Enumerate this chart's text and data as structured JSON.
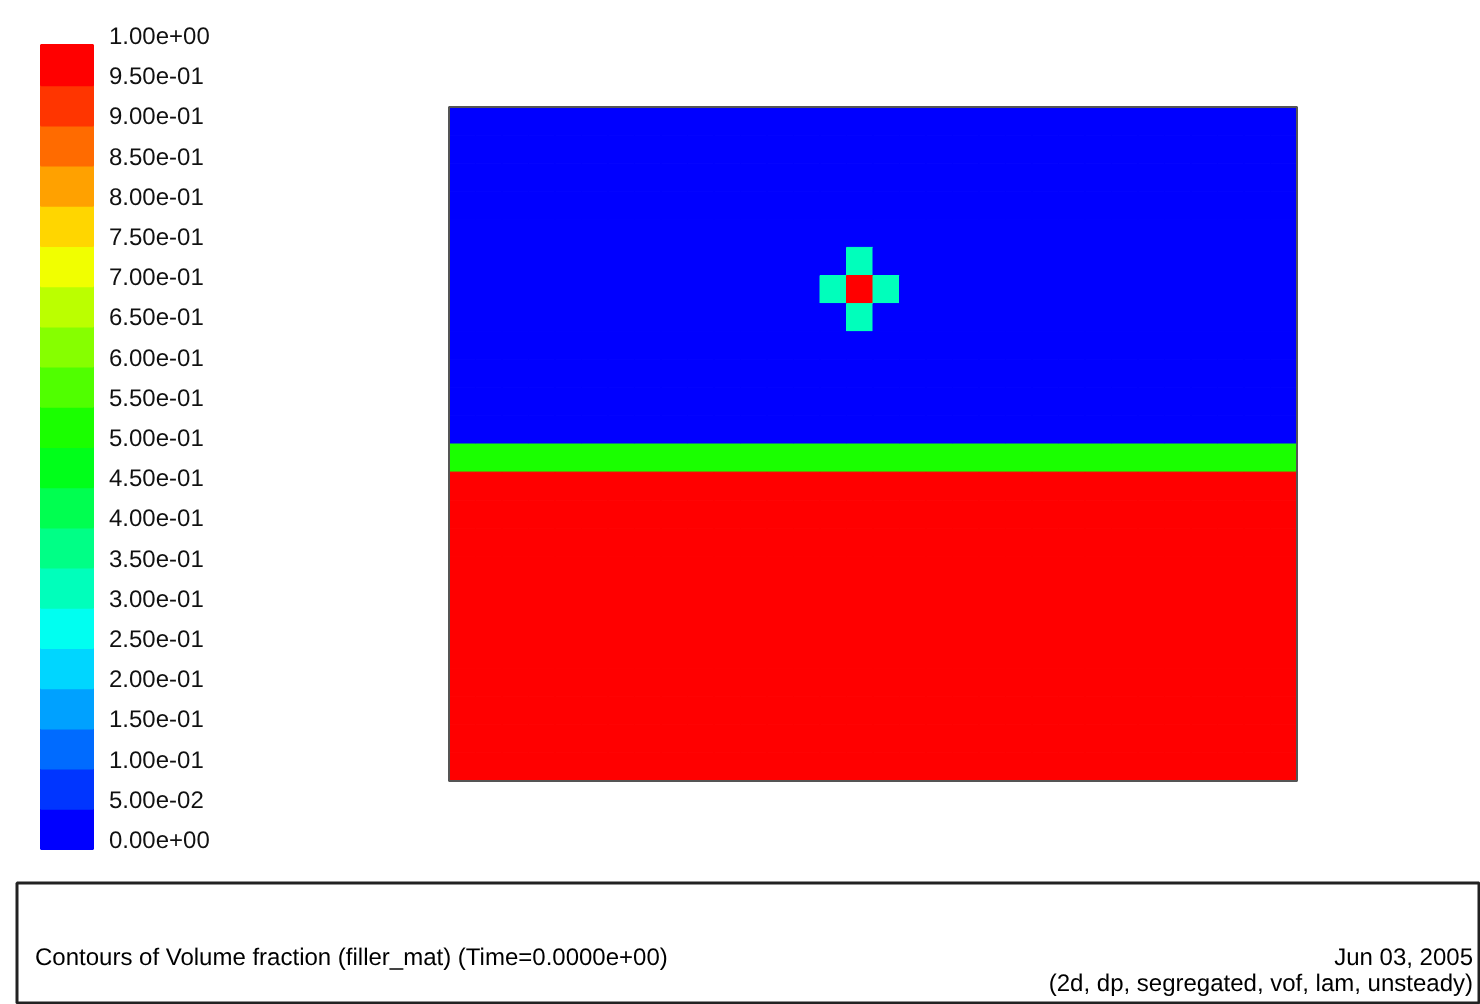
{
  "chart_data": {
    "type": "heatmap",
    "title": "Contours of Volume fraction (filler_mat)   (Time=0.0000e+00)",
    "annotations": [
      "Jun 03, 2005",
      "(2d, dp, segregated, vof, lam, unsteady)"
    ],
    "categories": [
      null,
      null,
      null,
      null,
      null,
      null,
      null,
      null,
      null,
      null,
      null,
      null,
      null,
      null,
      null,
      null,
      null,
      null,
      null,
      null,
      null,
      null,
      null,
      null,
      null,
      null,
      null,
      null,
      null,
      null,
      null,
      null
    ],
    "y_categories": [
      null,
      null,
      null,
      null,
      null,
      null,
      null,
      null,
      null,
      null,
      null,
      null,
      null,
      null,
      null,
      null,
      null,
      null,
      null,
      null,
      null,
      null,
      null,
      null
    ],
    "cells": [
      [
        0,
        0,
        0,
        0,
        0,
        0,
        0,
        0,
        0,
        0,
        0,
        0,
        0,
        0,
        0,
        0,
        0,
        0,
        0,
        0,
        0,
        0,
        0,
        0,
        0,
        0,
        0,
        0,
        0,
        0,
        0,
        0
      ],
      [
        0,
        0,
        0,
        0,
        0,
        0,
        0,
        0,
        0,
        0,
        0,
        0,
        0,
        0,
        0,
        0,
        0,
        0,
        0,
        0,
        0,
        0,
        0,
        0,
        0,
        0,
        0,
        0,
        0,
        0,
        0,
        0
      ],
      [
        0,
        0,
        0,
        0,
        0,
        0,
        0,
        0,
        0,
        0,
        0,
        0,
        0,
        0,
        0,
        0,
        0,
        0,
        0,
        0,
        0,
        0,
        0,
        0,
        0,
        0,
        0,
        0,
        0,
        0,
        0,
        0
      ],
      [
        0,
        0,
        0,
        0,
        0,
        0,
        0,
        0,
        0,
        0,
        0,
        0,
        0,
        0,
        0,
        0,
        0,
        0,
        0,
        0,
        0,
        0,
        0,
        0,
        0,
        0,
        0,
        0,
        0,
        0,
        0,
        0
      ],
      [
        0,
        0,
        0,
        0,
        0,
        0,
        0,
        0,
        0,
        0,
        0,
        0,
        0,
        0,
        0,
        0,
        0,
        0,
        0,
        0,
        0,
        0,
        0,
        0,
        0,
        0,
        0,
        0,
        0,
        0,
        0,
        0
      ],
      [
        0,
        0,
        0,
        0,
        0,
        0,
        0,
        0,
        0,
        0,
        0,
        0,
        0,
        0,
        0,
        0.3,
        0,
        0,
        0,
        0,
        0,
        0,
        0,
        0,
        0,
        0,
        0,
        0,
        0,
        0,
        0,
        0
      ],
      [
        0,
        0,
        0,
        0,
        0,
        0,
        0,
        0,
        0,
        0,
        0,
        0,
        0,
        0,
        0.3,
        1,
        0.3,
        0,
        0,
        0,
        0,
        0,
        0,
        0,
        0,
        0,
        0,
        0,
        0,
        0,
        0,
        0
      ],
      [
        0,
        0,
        0,
        0,
        0,
        0,
        0,
        0,
        0,
        0,
        0,
        0,
        0,
        0,
        0,
        0.3,
        0,
        0,
        0,
        0,
        0,
        0,
        0,
        0,
        0,
        0,
        0,
        0,
        0,
        0,
        0,
        0
      ],
      [
        0,
        0,
        0,
        0,
        0,
        0,
        0,
        0,
        0,
        0,
        0,
        0,
        0,
        0,
        0,
        0,
        0,
        0,
        0,
        0,
        0,
        0,
        0,
        0,
        0,
        0,
        0,
        0,
        0,
        0,
        0,
        0
      ],
      [
        0,
        0,
        0,
        0,
        0,
        0,
        0,
        0,
        0,
        0,
        0,
        0,
        0,
        0,
        0,
        0,
        0,
        0,
        0,
        0,
        0,
        0,
        0,
        0,
        0,
        0,
        0,
        0,
        0,
        0,
        0,
        0
      ],
      [
        0,
        0,
        0,
        0,
        0,
        0,
        0,
        0,
        0,
        0,
        0,
        0,
        0,
        0,
        0,
        0,
        0,
        0,
        0,
        0,
        0,
        0,
        0,
        0,
        0,
        0,
        0,
        0,
        0,
        0,
        0,
        0
      ],
      [
        0,
        0,
        0,
        0,
        0,
        0,
        0,
        0,
        0,
        0,
        0,
        0,
        0,
        0,
        0,
        0,
        0,
        0,
        0,
        0,
        0,
        0,
        0,
        0,
        0,
        0,
        0,
        0,
        0,
        0,
        0,
        0
      ],
      [
        0.5,
        0.5,
        0.5,
        0.5,
        0.5,
        0.5,
        0.5,
        0.5,
        0.5,
        0.5,
        0.5,
        0.5,
        0.5,
        0.5,
        0.5,
        0.5,
        0.5,
        0.5,
        0.5,
        0.5,
        0.5,
        0.5,
        0.5,
        0.5,
        0.5,
        0.5,
        0.5,
        0.5,
        0.5,
        0.5,
        0.5,
        0.5
      ],
      [
        1,
        1,
        1,
        1,
        1,
        1,
        1,
        1,
        1,
        1,
        1,
        1,
        1,
        1,
        1,
        1,
        1,
        1,
        1,
        1,
        1,
        1,
        1,
        1,
        1,
        1,
        1,
        1,
        1,
        1,
        1,
        1
      ],
      [
        1,
        1,
        1,
        1,
        1,
        1,
        1,
        1,
        1,
        1,
        1,
        1,
        1,
        1,
        1,
        1,
        1,
        1,
        1,
        1,
        1,
        1,
        1,
        1,
        1,
        1,
        1,
        1,
        1,
        1,
        1,
        1
      ],
      [
        1,
        1,
        1,
        1,
        1,
        1,
        1,
        1,
        1,
        1,
        1,
        1,
        1,
        1,
        1,
        1,
        1,
        1,
        1,
        1,
        1,
        1,
        1,
        1,
        1,
        1,
        1,
        1,
        1,
        1,
        1,
        1
      ],
      [
        1,
        1,
        1,
        1,
        1,
        1,
        1,
        1,
        1,
        1,
        1,
        1,
        1,
        1,
        1,
        1,
        1,
        1,
        1,
        1,
        1,
        1,
        1,
        1,
        1,
        1,
        1,
        1,
        1,
        1,
        1,
        1
      ],
      [
        1,
        1,
        1,
        1,
        1,
        1,
        1,
        1,
        1,
        1,
        1,
        1,
        1,
        1,
        1,
        1,
        1,
        1,
        1,
        1,
        1,
        1,
        1,
        1,
        1,
        1,
        1,
        1,
        1,
        1,
        1,
        1
      ],
      [
        1,
        1,
        1,
        1,
        1,
        1,
        1,
        1,
        1,
        1,
        1,
        1,
        1,
        1,
        1,
        1,
        1,
        1,
        1,
        1,
        1,
        1,
        1,
        1,
        1,
        1,
        1,
        1,
        1,
        1,
        1,
        1
      ],
      [
        1,
        1,
        1,
        1,
        1,
        1,
        1,
        1,
        1,
        1,
        1,
        1,
        1,
        1,
        1,
        1,
        1,
        1,
        1,
        1,
        1,
        1,
        1,
        1,
        1,
        1,
        1,
        1,
        1,
        1,
        1,
        1
      ],
      [
        1,
        1,
        1,
        1,
        1,
        1,
        1,
        1,
        1,
        1,
        1,
        1,
        1,
        1,
        1,
        1,
        1,
        1,
        1,
        1,
        1,
        1,
        1,
        1,
        1,
        1,
        1,
        1,
        1,
        1,
        1,
        1
      ],
      [
        1,
        1,
        1,
        1,
        1,
        1,
        1,
        1,
        1,
        1,
        1,
        1,
        1,
        1,
        1,
        1,
        1,
        1,
        1,
        1,
        1,
        1,
        1,
        1,
        1,
        1,
        1,
        1,
        1,
        1,
        1,
        1
      ],
      [
        1,
        1,
        1,
        1,
        1,
        1,
        1,
        1,
        1,
        1,
        1,
        1,
        1,
        1,
        1,
        1,
        1,
        1,
        1,
        1,
        1,
        1,
        1,
        1,
        1,
        1,
        1,
        1,
        1,
        1,
        1,
        1
      ],
      [
        1,
        1,
        1,
        1,
        1,
        1,
        1,
        1,
        1,
        1,
        1,
        1,
        1,
        1,
        1,
        1,
        1,
        1,
        1,
        1,
        1,
        1,
        1,
        1,
        1,
        1,
        1,
        1,
        1,
        1,
        1,
        1
      ]
    ],
    "clim": [
      0,
      1
    ],
    "cticks": [
      {
        "value": 0,
        "label": "0.00e+00"
      },
      {
        "value": 0.05,
        "label": "5.00e-02"
      },
      {
        "value": 0.1,
        "label": "1.00e-01"
      },
      {
        "value": 0.15,
        "label": "1.50e-01"
      },
      {
        "value": 0.2,
        "label": "2.00e-01"
      },
      {
        "value": 0.25,
        "label": "2.50e-01"
      },
      {
        "value": 0.3,
        "label": "3.00e-01"
      },
      {
        "value": 0.35,
        "label": "3.50e-01"
      },
      {
        "value": 0.4,
        "label": "4.00e-01"
      },
      {
        "value": 0.45,
        "label": "4.50e-01"
      },
      {
        "value": 0.5,
        "label": "5.00e-01"
      },
      {
        "value": 0.55,
        "label": "5.50e-01"
      },
      {
        "value": 0.6,
        "label": "6.00e-01"
      },
      {
        "value": 0.65,
        "label": "6.50e-01"
      },
      {
        "value": 0.7,
        "label": "7.00e-01"
      },
      {
        "value": 0.75,
        "label": "7.50e-01"
      },
      {
        "value": 0.8,
        "label": "8.00e-01"
      },
      {
        "value": 0.85,
        "label": "8.50e-01"
      },
      {
        "value": 0.9,
        "label": "9.00e-01"
      },
      {
        "value": 0.95,
        "label": "9.50e-01"
      },
      {
        "value": 1,
        "label": "1.00e+00"
      }
    ]
  }
}
